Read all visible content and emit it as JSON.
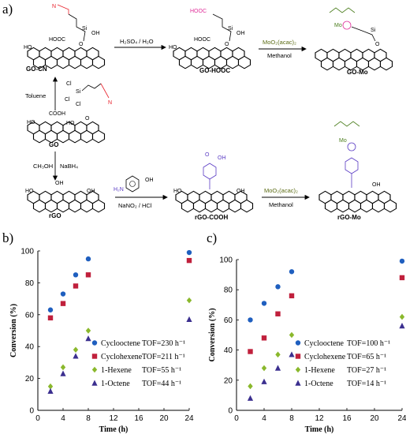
{
  "scheme": {
    "panel_label": "a)",
    "nodes": {
      "go_cn": "GO-CN",
      "go_hooc": "GO-HOOC",
      "go_mo": "GO-Mo",
      "go": "GO",
      "rgo": "rGO",
      "rgo_cooh": "rGO-COOH",
      "rgo_mo": "rGO-Mo"
    },
    "reagents": {
      "hydrolysis": "H₂SO₄ / H₂O",
      "mo_complex_top": "MoO₂(acac)₂",
      "methanol_top": "Methanol",
      "toluene": "Toluene",
      "methanol_reduction": "CH₃OH",
      "nabh4": "NaBH₄",
      "diazotization": "NaNO₂ / HCl",
      "mo_complex_bottom": "MoO₂(acac)₂",
      "methanol_bottom": "Methanol"
    },
    "fragments": {
      "cn": "N",
      "si": "Si",
      "oh": "OH",
      "o": "O",
      "ho": "HO",
      "hooc": "HOOC",
      "cooh": "COOH",
      "mo": "Mo",
      "cl": "Cl",
      "h2n": "H₂N"
    },
    "colors": {
      "nitrile": "#e8202a",
      "acid_pink": "#e0309a",
      "purple": "#5a3bc4",
      "mo_green": "#4a7d1c",
      "reagent_olive": "#5b6b14"
    }
  },
  "chart_data": [
    {
      "panel_label": "b)",
      "type": "scatter",
      "xlabel": "Time (h)",
      "ylabel": "Conversion (%)",
      "xlim": [
        0,
        24
      ],
      "ylim": [
        0,
        100
      ],
      "xticks": [
        "0",
        "4",
        "8",
        "12",
        "16",
        "20",
        "24"
      ],
      "yticks": [
        "0",
        "20",
        "40",
        "60",
        "80",
        "100"
      ],
      "series": [
        {
          "name": "Cyclooctene",
          "tof": "TOF=230 h⁻¹",
          "marker": "circle",
          "color": "#1f5fbf",
          "points": [
            [
              2,
              63
            ],
            [
              4,
              73
            ],
            [
              6,
              85
            ],
            [
              8,
              95
            ],
            [
              24,
              99
            ]
          ]
        },
        {
          "name": "Cyclohexene",
          "tof": "TOF=211 h⁻¹",
          "marker": "square",
          "color": "#c0203c",
          "points": [
            [
              2,
              58
            ],
            [
              4,
              67
            ],
            [
              6,
              78
            ],
            [
              8,
              85
            ],
            [
              24,
              94
            ]
          ]
        },
        {
          "name": "1-Hexene",
          "tof": "TOF=55 h⁻¹",
          "marker": "diamond",
          "color": "#8ab82c",
          "points": [
            [
              2,
              15
            ],
            [
              4,
              27
            ],
            [
              6,
              38
            ],
            [
              8,
              50
            ],
            [
              24,
              69
            ]
          ]
        },
        {
          "name": "1-Octene",
          "tof": "TOF=44 h⁻¹",
          "marker": "triangle",
          "color": "#3b2f8f",
          "points": [
            [
              2,
              12
            ],
            [
              4,
              23
            ],
            [
              6,
              34
            ],
            [
              8,
              45
            ],
            [
              24,
              57
            ]
          ]
        }
      ],
      "legend": "lower-center"
    },
    {
      "panel_label": "c)",
      "type": "scatter",
      "xlabel": "Time (h)",
      "ylabel": "Conversion (%)",
      "xlim": [
        0,
        24
      ],
      "ylim": [
        0,
        100
      ],
      "xticks": [
        "0",
        "4",
        "8",
        "12",
        "16",
        "20",
        "24"
      ],
      "yticks": [
        "0",
        "20",
        "40",
        "60",
        "80",
        "100"
      ],
      "series": [
        {
          "name": "Cyclooctene",
          "tof": "TOF=100 h⁻¹",
          "marker": "circle",
          "color": "#1f5fbf",
          "points": [
            [
              2,
              60
            ],
            [
              4,
              71
            ],
            [
              6,
              82
            ],
            [
              8,
              92
            ],
            [
              24,
              99
            ]
          ]
        },
        {
          "name": "Cyclohexene",
          "tof": "TOF=65 h⁻¹",
          "marker": "square",
          "color": "#c0203c",
          "points": [
            [
              2,
              39
            ],
            [
              4,
              48
            ],
            [
              6,
              64
            ],
            [
              8,
              76
            ],
            [
              24,
              88
            ]
          ]
        },
        {
          "name": "1-Hexene",
          "tof": "TOF=27 h⁻¹",
          "marker": "diamond",
          "color": "#8ab82c",
          "points": [
            [
              2,
              16
            ],
            [
              4,
              28
            ],
            [
              6,
              37
            ],
            [
              8,
              50
            ],
            [
              24,
              62
            ]
          ]
        },
        {
          "name": "1-Octene",
          "tof": "TOF=14 h⁻¹",
          "marker": "triangle",
          "color": "#3b2f8f",
          "points": [
            [
              2,
              8
            ],
            [
              4,
              19
            ],
            [
              6,
              28
            ],
            [
              8,
              37
            ],
            [
              24,
              56
            ]
          ]
        }
      ],
      "legend": "lower-center"
    }
  ]
}
